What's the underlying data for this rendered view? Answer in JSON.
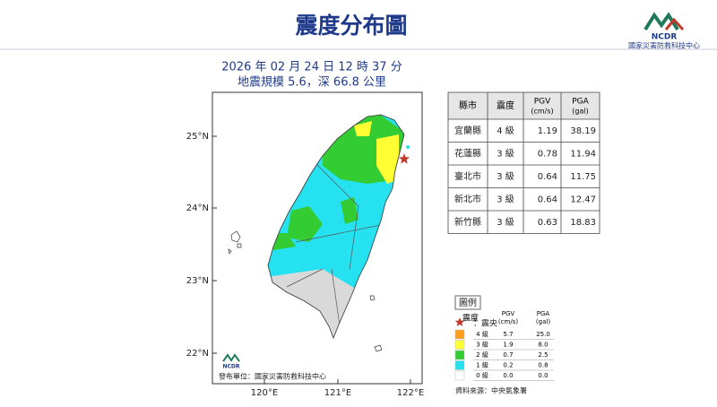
{
  "header": {
    "title": "震度分布圖",
    "logo": "NCDR",
    "org": "國家災害防救科技中心"
  },
  "event": {
    "time": "2026 年 02 月 24 日 12 時 37 分",
    "magnitude": "地震規模 5.6，深 66.8 公里"
  },
  "map": {
    "lat_labels": [
      "25°N",
      "24°N",
      "23°N",
      "22°N"
    ],
    "lon_labels": [
      "120°E",
      "121°E",
      "122°E"
    ],
    "logo": "NCDR",
    "publisher": "發布單位：國家災害防救科技中心"
  },
  "table": {
    "headers": [
      {
        "name": "縣市"
      },
      {
        "name": "震度"
      },
      {
        "name": "PGV",
        "unit": "(cm/s)"
      },
      {
        "name": "PGA",
        "unit": "(gal)"
      }
    ],
    "rows": [
      [
        "宜蘭縣",
        "4 級",
        "1.19",
        "38.19"
      ],
      [
        "花蓮縣",
        "3 級",
        "0.78",
        "11.94"
      ],
      [
        "臺北市",
        "3 級",
        "0.64",
        "11.75"
      ],
      [
        "新北市",
        "3 級",
        "0.64",
        "12.47"
      ],
      [
        "新竹縣",
        "3 級",
        "0.63",
        "18.83"
      ]
    ]
  },
  "legend": {
    "title": "圖例",
    "epicenter": "：震央",
    "headers": [
      {
        "name": "震度"
      },
      {
        "name": "PGV",
        "unit": "(cm/s)"
      },
      {
        "name": "PGA",
        "unit": "(gal)"
      }
    ],
    "rows": [
      [
        "4 級",
        "5.7",
        "25.0"
      ],
      [
        "3 級",
        "1.9",
        "8.0"
      ],
      [
        "2 級",
        "0.7",
        "2.5"
      ],
      [
        "1 級",
        "0.2",
        "0.8"
      ],
      [
        "0 級",
        "0.0",
        "0.0"
      ]
    ],
    "source": "資料來源：中央氣象署"
  }
}
